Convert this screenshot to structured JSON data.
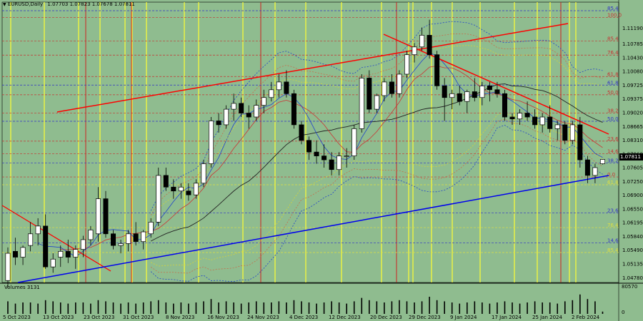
{
  "header": {
    "symbol_text": "EURUSD,Daily",
    "ohlc_text": "1.07703 1.07823 1.07678 1.07811"
  },
  "volume_panel": {
    "label": "Volumes 3131",
    "max_label": "80570",
    "zero_label": "0"
  },
  "current_price_label": "1.07811",
  "colors": {
    "background": "#8fbc8f",
    "bull_candle": "#ffffff",
    "bear_candle": "#000000",
    "fib_red": "#cc3333",
    "fib_blue": "#3333cc",
    "yellow_vline": "#ffff33",
    "red_vline": "#cc2222",
    "trend_red": "#ff0000",
    "trend_blue": "#0000ee"
  },
  "chart_data": {
    "type": "candlestick",
    "ylim": [
      1.0465,
      1.1185
    ],
    "y_ticks": [
      "1.11190",
      "1.10785",
      "1.10430",
      "1.10080",
      "1.09725",
      "1.09375",
      "1.09020",
      "1.08665",
      "1.08310",
      "1.07960",
      "1.07605",
      "1.07250",
      "1.06900",
      "1.06550",
      "1.06195",
      "1.05840",
      "1.05490",
      "1.05135",
      "1.04780"
    ],
    "x_ticks": [
      "5 Oct 2023",
      "13 Oct 2023",
      "23 Oct 2023",
      "31 Oct 2023",
      "8 Nov 2023",
      "16 Nov 2023",
      "24 Nov 2023",
      "4 Dec 2023",
      "12 Dec 2023",
      "20 Dec 2023",
      "29 Dec 2023",
      "9 Jan 2024",
      "17 Jan 2024",
      "25 Jan 2024",
      "2 Feb 2024"
    ],
    "fib_levels_upper": [
      {
        "label": "85.4",
        "price": 1.1163,
        "color": "blue"
      },
      {
        "label": "100.0",
        "price": 1.1146,
        "color": "red"
      },
      {
        "label": "85.4",
        "price": 1.1085,
        "color": "red"
      },
      {
        "label": "76.4",
        "price": 1.1049,
        "color": "red"
      },
      {
        "label": "61.8",
        "price": 1.0994,
        "color": "red"
      },
      {
        "label": "61.8",
        "price": 1.0972,
        "color": "blue"
      },
      {
        "label": "50.0",
        "price": 1.0947,
        "color": "red"
      },
      {
        "label": "38.2",
        "price": 1.09,
        "color": "red"
      },
      {
        "label": "50.0",
        "price": 1.0879,
        "color": "blue"
      },
      {
        "label": "23.6",
        "price": 1.0828,
        "color": "red"
      },
      {
        "label": "14.6",
        "price": 1.0796,
        "color": "red"
      },
      {
        "label": "38.2",
        "price": 1.0772,
        "color": "blue"
      },
      {
        "label": "0.0",
        "price": 1.0736,
        "color": "red"
      },
      {
        "label": "61.8",
        "price": 1.0716,
        "color": "yellow"
      }
    ],
    "fib_levels_lower": [
      {
        "label": "23.6",
        "price": 1.0644,
        "color": "blue"
      },
      {
        "label": "76.4",
        "price": 1.0606,
        "color": "yellow"
      },
      {
        "label": "14.6",
        "price": 1.0567,
        "color": "blue"
      },
      {
        "label": "85.4",
        "price": 1.0542,
        "color": "yellow"
      }
    ],
    "candles": [
      [
        1.047,
        1.0555,
        1.045,
        1.054
      ],
      [
        1.0545,
        1.058,
        1.051,
        1.053
      ],
      [
        1.053,
        1.056,
        1.051,
        1.0555
      ],
      [
        1.056,
        1.062,
        1.0545,
        1.059
      ],
      [
        1.059,
        1.063,
        1.056,
        1.061
      ],
      [
        1.061,
        1.064,
        1.05,
        1.0505
      ],
      [
        1.0505,
        1.054,
        1.049,
        1.0525
      ],
      [
        1.053,
        1.056,
        1.0505,
        1.0545
      ],
      [
        1.0545,
        1.0575,
        1.0515,
        1.053
      ],
      [
        1.053,
        1.056,
        1.05,
        1.055
      ],
      [
        1.055,
        1.0585,
        1.053,
        1.0575
      ],
      [
        1.0575,
        1.061,
        1.056,
        1.06
      ],
      [
        1.059,
        1.071,
        1.057,
        1.068
      ],
      [
        1.068,
        1.07,
        1.058,
        1.059
      ],
      [
        1.059,
        1.06,
        1.055,
        1.056
      ],
      [
        1.056,
        1.0575,
        1.054,
        1.0565
      ],
      [
        1.0565,
        1.06,
        1.0545,
        1.059
      ],
      [
        1.059,
        1.062,
        1.056,
        1.057
      ],
      [
        1.057,
        1.06,
        1.055,
        1.0595
      ],
      [
        1.059,
        1.063,
        1.058,
        1.062
      ],
      [
        1.062,
        1.076,
        1.061,
        1.074
      ],
      [
        1.074,
        1.076,
        1.07,
        1.071
      ],
      [
        1.071,
        1.073,
        1.068,
        1.07
      ],
      [
        1.07,
        1.072,
        1.068,
        1.071
      ],
      [
        1.07,
        1.072,
        1.0675,
        1.069
      ],
      [
        1.069,
        1.073,
        1.068,
        1.072
      ],
      [
        1.072,
        1.078,
        1.071,
        1.077
      ],
      [
        1.077,
        1.089,
        1.076,
        1.088
      ],
      [
        1.088,
        1.09,
        1.085,
        1.087
      ],
      [
        1.087,
        1.092,
        1.086,
        1.091
      ],
      [
        1.091,
        1.095,
        1.088,
        1.0925
      ],
      [
        1.0925,
        1.094,
        1.089,
        1.09
      ],
      [
        1.09,
        1.092,
        1.086,
        1.089
      ],
      [
        1.089,
        1.0935,
        1.088,
        1.092
      ],
      [
        1.092,
        1.096,
        1.09,
        1.094
      ],
      [
        1.094,
        1.098,
        1.093,
        1.096
      ],
      [
        1.096,
        1.1,
        1.094,
        1.098
      ],
      [
        1.098,
        1.101,
        1.094,
        1.095
      ],
      [
        1.095,
        1.096,
        1.086,
        1.087
      ],
      [
        1.087,
        1.088,
        1.082,
        1.083
      ],
      [
        1.083,
        1.084,
        1.078,
        1.08
      ],
      [
        1.08,
        1.083,
        1.077,
        1.079
      ],
      [
        1.079,
        1.082,
        1.076,
        1.078
      ],
      [
        1.078,
        1.08,
        1.074,
        1.0755
      ],
      [
        1.0755,
        1.08,
        1.074,
        1.079
      ],
      [
        1.079,
        1.081,
        1.076,
        1.079
      ],
      [
        1.079,
        1.087,
        1.078,
        1.086
      ],
      [
        1.086,
        1.1,
        1.085,
        1.099
      ],
      [
        1.099,
        1.101,
        1.09,
        1.091
      ],
      [
        1.091,
        1.095,
        1.09,
        1.0945
      ],
      [
        1.0945,
        1.099,
        1.093,
        1.098
      ],
      [
        1.098,
        1.1,
        1.094,
        1.095
      ],
      [
        1.095,
        1.101,
        1.094,
        1.1
      ],
      [
        1.1,
        1.106,
        1.099,
        1.105
      ],
      [
        1.105,
        1.108,
        1.103,
        1.107
      ],
      [
        1.107,
        1.112,
        1.106,
        1.11
      ],
      [
        1.11,
        1.114,
        1.104,
        1.105
      ],
      [
        1.105,
        1.106,
        1.096,
        1.097
      ],
      [
        1.097,
        1.099,
        1.088,
        1.094
      ],
      [
        1.094,
        1.096,
        1.091,
        1.095
      ],
      [
        1.095,
        1.097,
        1.092,
        1.093
      ],
      [
        1.093,
        1.096,
        1.09,
        1.0955
      ],
      [
        1.0955,
        1.099,
        1.093,
        1.094
      ],
      [
        1.094,
        1.098,
        1.092,
        1.097
      ],
      [
        1.097,
        1.098,
        1.093,
        1.096
      ],
      [
        1.096,
        1.098,
        1.094,
        1.095
      ],
      [
        1.095,
        1.096,
        1.088,
        1.089
      ],
      [
        1.089,
        1.09,
        1.087,
        1.0885
      ],
      [
        1.0885,
        1.091,
        1.087,
        1.09
      ],
      [
        1.09,
        1.093,
        1.088,
        1.089
      ],
      [
        1.089,
        1.091,
        1.086,
        1.087
      ],
      [
        1.087,
        1.09,
        1.085,
        1.089
      ],
      [
        1.089,
        1.092,
        1.085,
        1.086
      ],
      [
        1.086,
        1.088,
        1.083,
        1.087
      ],
      [
        1.087,
        1.088,
        1.082,
        1.083
      ],
      [
        1.083,
        1.088,
        1.082,
        1.087
      ],
      [
        1.087,
        1.089,
        1.076,
        1.078
      ],
      [
        1.078,
        1.079,
        1.072,
        1.074
      ],
      [
        1.074,
        1.077,
        1.072,
        1.076
      ],
      [
        1.077,
        1.0782,
        1.0768,
        1.0781
      ]
    ],
    "volumes": [
      0.55,
      0.45,
      0.5,
      0.5,
      0.45,
      0.6,
      0.55,
      0.5,
      0.45,
      0.5,
      0.5,
      0.45,
      0.6,
      0.55,
      0.5,
      0.45,
      0.5,
      0.45,
      0.5,
      0.55,
      0.6,
      0.5,
      0.45,
      0.5,
      0.45,
      0.5,
      0.55,
      0.65,
      0.5,
      0.55,
      0.5,
      0.45,
      0.5,
      0.55,
      0.5,
      0.5,
      0.55,
      0.5,
      0.6,
      0.55,
      0.5,
      0.45,
      0.5,
      0.55,
      0.5,
      0.45,
      0.55,
      0.7,
      0.6,
      0.55,
      0.5,
      0.55,
      0.6,
      0.55,
      0.5,
      0.55,
      0.75,
      0.6,
      0.55,
      0.5,
      0.45,
      0.5,
      0.55,
      0.5,
      0.45,
      0.5,
      0.55,
      0.5,
      0.45,
      0.5,
      0.55,
      0.5,
      0.5,
      0.45,
      0.55,
      0.6,
      0.85,
      0.65,
      0.55,
      0.1
    ]
  }
}
